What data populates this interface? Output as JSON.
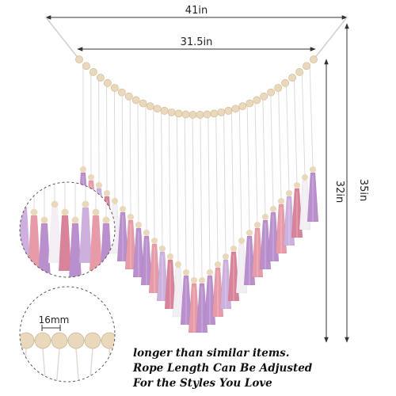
{
  "dimensions": {
    "total_width": "41in",
    "bead_span": "31.5in",
    "total_height": "35in",
    "tassel_height": "32in",
    "bead_size": "16mm"
  },
  "caption": {
    "line1": "longer than similar items.",
    "line2": "Rope Length Can Be Adjusted",
    "line3": "For the Styles You Love"
  },
  "colors": {
    "purple": "#b98fce",
    "light_purple": "#cdb0de",
    "pink": "#e79aa8",
    "rose": "#d9839a",
    "white": "#f2eef3",
    "bead": "#ead8bd",
    "line": "#333333"
  }
}
